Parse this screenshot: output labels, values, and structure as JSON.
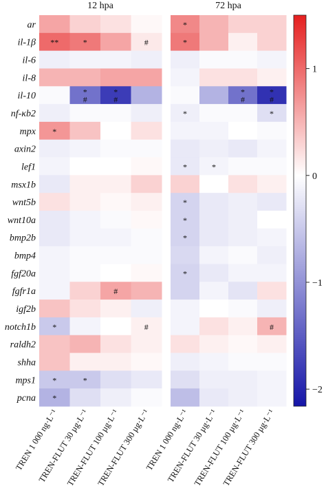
{
  "chart_data": {
    "type": "heatmap",
    "column_groups": [
      "12 hpa",
      "72 hpa"
    ],
    "columns": [
      "TREN 1 000 ng·L⁻¹",
      "TREN-FLUT 30 µg·L⁻¹",
      "TREN-FLUT 100 µg·L⁻¹",
      "TREN-FLUT 300 µg·L⁻¹"
    ],
    "rows": [
      "ar",
      "il-1β",
      "il-6",
      "il-8",
      "il-10",
      "nf-κb2",
      "mpx",
      "axin2",
      "lef1",
      "msx1b",
      "wnt5b",
      "wnt10a",
      "bmp2b",
      "bmp4",
      "fgf20a",
      "fgfr1a",
      "igf2b",
      "notch1b",
      "raldh2",
      "shha",
      "mps1",
      "pcna"
    ],
    "values": [
      [
        0.6,
        0.3,
        0.2,
        0.05,
        0.8,
        0.5,
        0.3,
        0.3
      ],
      [
        1.0,
        0.9,
        0.6,
        0.15,
        0.9,
        0.5,
        0.1,
        0.3
      ],
      [
        -0.15,
        -0.1,
        -0.1,
        -0.15,
        -0.15,
        -0.05,
        -0.05,
        -0.1
      ],
      [
        0.5,
        0.5,
        0.6,
        0.6,
        -0.1,
        0.2,
        0.2,
        0.1
      ],
      [
        -0.05,
        -1.3,
        -1.8,
        -0.7,
        -0.05,
        -0.7,
        -1.3,
        -1.9
      ],
      [
        -0.15,
        -0.05,
        -0.05,
        -0.15,
        -0.15,
        -0.05,
        -0.05,
        -0.3
      ],
      [
        0.7,
        0.4,
        0.0,
        0.2,
        -0.1,
        -0.1,
        0.0,
        -0.05
      ],
      [
        -0.15,
        -0.1,
        -0.05,
        -0.05,
        -0.2,
        -0.15,
        -0.2,
        -0.1
      ],
      [
        -0.1,
        0.0,
        0.0,
        0.05,
        -0.2,
        -0.1,
        -0.05,
        -0.05
      ],
      [
        -0.2,
        0.1,
        0.1,
        0.3,
        0.3,
        0.0,
        0.2,
        0.1
      ],
      [
        0.2,
        0.1,
        0.05,
        0.1,
        -0.4,
        -0.2,
        -0.15,
        -0.2
      ],
      [
        -0.2,
        -0.1,
        -0.05,
        0.05,
        -0.4,
        -0.2,
        -0.15,
        0.0
      ],
      [
        -0.2,
        -0.1,
        -0.1,
        -0.05,
        -0.4,
        -0.2,
        -0.15,
        -0.1
      ],
      [
        -0.1,
        -0.05,
        -0.05,
        -0.05,
        -0.35,
        -0.1,
        -0.05,
        -0.15
      ],
      [
        -0.1,
        -0.05,
        0.0,
        0.05,
        -0.4,
        -0.2,
        -0.1,
        -0.1
      ],
      [
        -0.1,
        0.3,
        0.6,
        0.5,
        -0.4,
        -0.1,
        -0.25,
        0.2
      ],
      [
        0.4,
        0.2,
        0.1,
        -0.15,
        -0.1,
        0.0,
        -0.05,
        -0.15
      ],
      [
        -0.5,
        -0.1,
        0.0,
        0.1,
        -0.1,
        0.2,
        0.1,
        0.5
      ],
      [
        0.4,
        0.5,
        0.2,
        0.1,
        0.2,
        0.1,
        0.05,
        0.1
      ],
      [
        0.4,
        0.1,
        0.1,
        0.05,
        -0.15,
        -0.1,
        -0.05,
        -0.05
      ],
      [
        -0.5,
        -0.5,
        -0.3,
        -0.2,
        -0.3,
        -0.15,
        -0.15,
        -0.1
      ],
      [
        -0.7,
        -0.3,
        -0.15,
        -0.05,
        -0.6,
        -0.2,
        -0.15,
        -0.1
      ]
    ],
    "annotations": [
      [
        null,
        null,
        null,
        null,
        [
          "*"
        ],
        null,
        null,
        null
      ],
      [
        [
          "**"
        ],
        [
          "*"
        ],
        null,
        [
          "#"
        ],
        [
          "*"
        ],
        null,
        null,
        null
      ],
      [
        null,
        null,
        null,
        null,
        null,
        null,
        null,
        null
      ],
      [
        null,
        null,
        null,
        null,
        null,
        null,
        null,
        null
      ],
      [
        null,
        [
          "*",
          "#"
        ],
        [
          "*",
          "#"
        ],
        null,
        null,
        null,
        [
          "*",
          "#"
        ],
        [
          "*",
          "#"
        ]
      ],
      [
        null,
        null,
        null,
        null,
        [
          "*"
        ],
        null,
        null,
        [
          "*"
        ]
      ],
      [
        [
          "*"
        ],
        null,
        null,
        null,
        null,
        null,
        null,
        null
      ],
      [
        null,
        null,
        null,
        null,
        null,
        null,
        null,
        null
      ],
      [
        null,
        null,
        null,
        null,
        [
          "*"
        ],
        [
          "*"
        ],
        null,
        null
      ],
      [
        null,
        null,
        null,
        null,
        null,
        null,
        null,
        null
      ],
      [
        null,
        null,
        null,
        null,
        [
          "*"
        ],
        null,
        null,
        null
      ],
      [
        null,
        null,
        null,
        null,
        [
          "*"
        ],
        null,
        null,
        null
      ],
      [
        null,
        null,
        null,
        null,
        [
          "*"
        ],
        null,
        null,
        null
      ],
      [
        null,
        null,
        null,
        null,
        null,
        null,
        null,
        null
      ],
      [
        null,
        null,
        null,
        null,
        [
          "*"
        ],
        null,
        null,
        null
      ],
      [
        null,
        null,
        [
          "#"
        ],
        null,
        null,
        null,
        null,
        null
      ],
      [
        null,
        null,
        null,
        null,
        null,
        null,
        null,
        null
      ],
      [
        [
          "*"
        ],
        null,
        null,
        [
          "#"
        ],
        null,
        null,
        null,
        [
          "#"
        ]
      ],
      [
        null,
        null,
        null,
        null,
        null,
        null,
        null,
        null
      ],
      [
        null,
        null,
        null,
        null,
        null,
        null,
        null,
        null
      ],
      [
        [
          "*"
        ],
        [
          "*"
        ],
        null,
        null,
        null,
        null,
        null,
        null
      ],
      [
        [
          "*"
        ],
        null,
        null,
        null,
        null,
        null,
        null,
        null
      ]
    ],
    "colormap": [
      "#1515a8",
      "#ffffff",
      "#e51f1f"
    ],
    "clim": [
      -2.16,
      1.5
    ],
    "cticks": [
      {
        "value": -2,
        "label": "−2"
      },
      {
        "value": -1,
        "label": "−1"
      },
      0,
      1
    ]
  }
}
